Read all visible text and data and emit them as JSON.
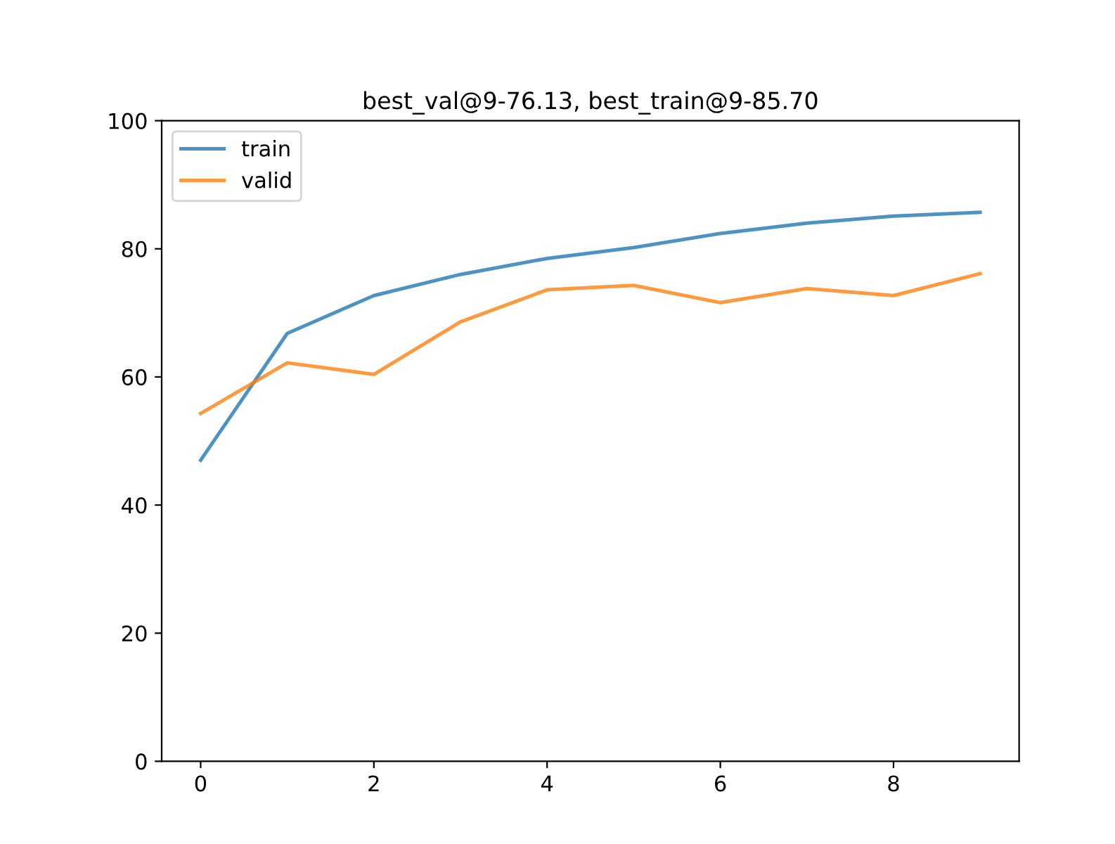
{
  "chart_data": {
    "type": "line",
    "title": "best_val@9-76.13, best_train@9-85.70",
    "x": [
      0,
      1,
      2,
      3,
      4,
      5,
      6,
      7,
      8,
      9
    ],
    "series": [
      {
        "name": "train",
        "color": "#1f77b4",
        "values": [
          47.0,
          66.8,
          72.7,
          76.0,
          78.5,
          80.2,
          82.4,
          84.0,
          85.1,
          85.7
        ]
      },
      {
        "name": "valid",
        "color": "#ff7f0e",
        "values": [
          54.3,
          62.2,
          60.4,
          68.6,
          73.6,
          74.3,
          71.6,
          73.8,
          72.7,
          76.13
        ]
      }
    ],
    "xlim": [
      -0.45,
      9.45
    ],
    "xticks": [
      0,
      2,
      4,
      6,
      8
    ],
    "ylim": [
      0,
      100
    ],
    "yticks": [
      0,
      20,
      40,
      60,
      80,
      100
    ],
    "grid": false,
    "legend": "top left",
    "marker": "none",
    "line_style": "solid"
  }
}
